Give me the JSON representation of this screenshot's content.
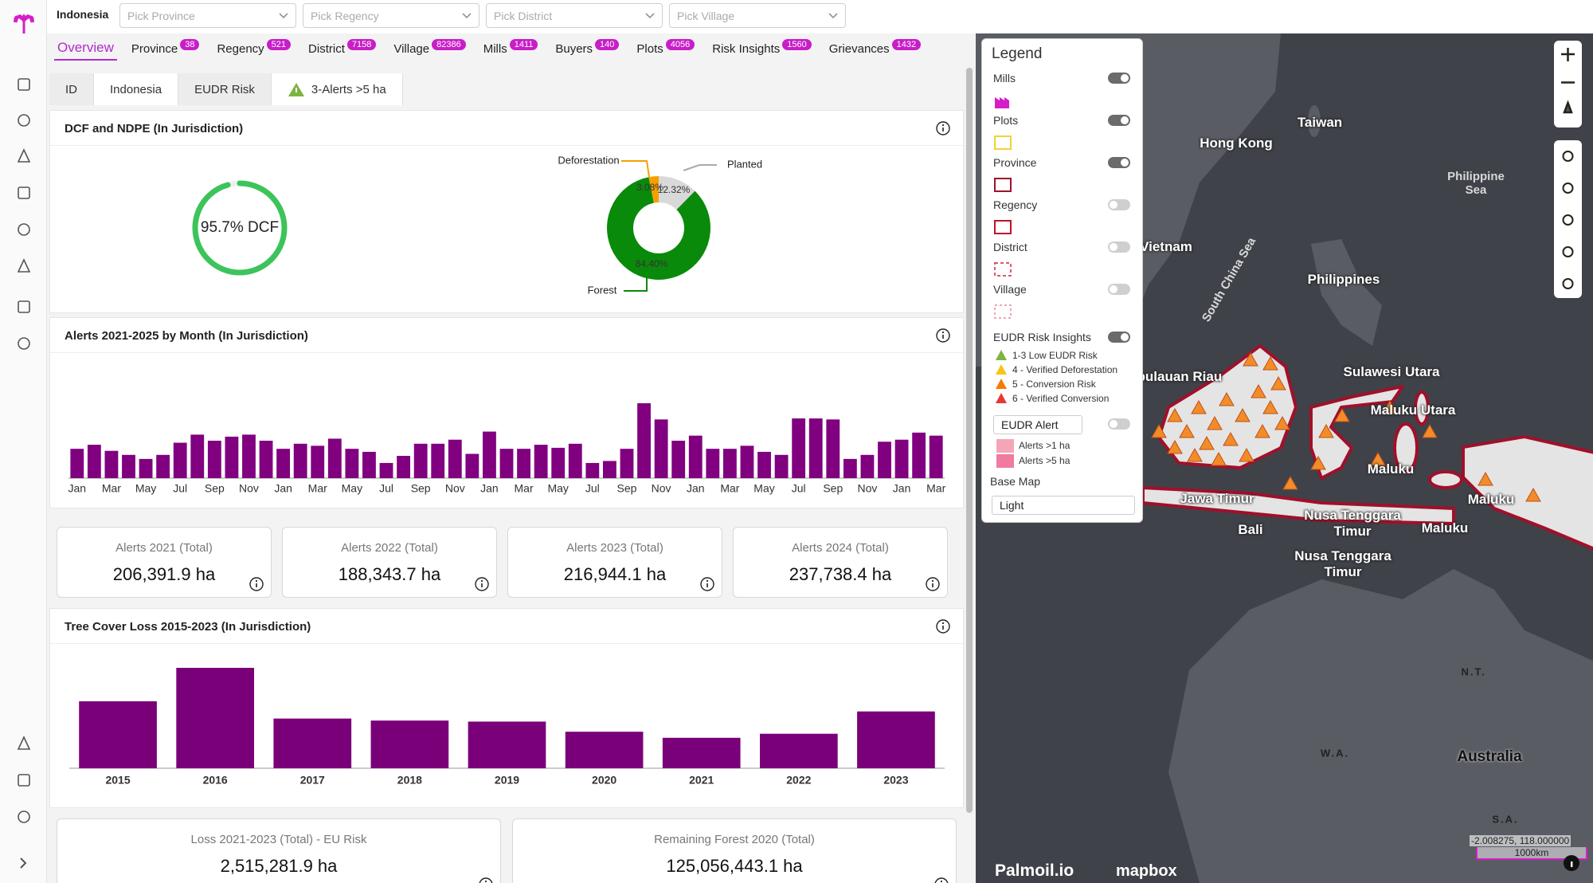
{
  "top_bar": {
    "country": "Indonesia",
    "filters": [
      "Pick Province",
      "Pick Regency",
      "Pick District",
      "Pick Village"
    ]
  },
  "tabs": [
    {
      "label": "Overview",
      "active": true
    },
    {
      "label": "Province",
      "count": 38
    },
    {
      "label": "Regency",
      "count": 521
    },
    {
      "label": "District",
      "count": 7158
    },
    {
      "label": "Village",
      "count": 82386
    },
    {
      "label": "Mills",
      "count": 1411
    },
    {
      "label": "Buyers",
      "count": 140
    },
    {
      "label": "Plots",
      "count": 4056
    },
    {
      "label": "Risk Insights",
      "count": 1560
    },
    {
      "label": "Grievances",
      "count": 1432
    }
  ],
  "sub_tabs": [
    {
      "label": "ID"
    },
    {
      "label": "Indonesia",
      "active": true
    },
    {
      "label": "EUDR Risk"
    },
    {
      "label": "3-Alerts >5 ha",
      "active": true
    }
  ],
  "dcf_panel": {
    "title": "DCF and NDPE (In Jurisdiction)",
    "dcf": {
      "value": 95.7,
      "label": "95.7% DCF",
      "color": "#3cc45a"
    },
    "donut": {
      "type": "donut",
      "categories": [
        "Planted",
        "Forest",
        "Deforestation"
      ],
      "values": [
        12.32,
        84.4,
        3.08
      ],
      "value_labels": [
        "12.32%",
        "84.40%",
        "3.08%"
      ],
      "colors": [
        "#d9d9d9",
        "#0a8a0a",
        "#f5a000"
      ]
    }
  },
  "alerts_chart": {
    "type": "bar",
    "title": "Alerts 2021-2025 by Month (In Jurisdiction)",
    "color": "#800080",
    "categories": [
      "Jan",
      null,
      "Mar",
      null,
      "May",
      null,
      "Jul",
      null,
      "Sep",
      null,
      "Nov",
      null,
      "Jan",
      null,
      "Mar",
      null,
      "May",
      null,
      "Jul",
      null,
      "Sep",
      null,
      "Nov",
      null,
      "Jan",
      null,
      "Mar",
      null,
      "May",
      null,
      "Jul",
      null,
      "Sep",
      null,
      "Nov",
      null,
      "Jan",
      null,
      "Mar",
      null,
      "May",
      null,
      "Jul",
      null,
      "Sep",
      null,
      "Nov",
      null,
      "Jan",
      null,
      "Mar"
    ],
    "values": [
      29,
      33,
      27,
      23,
      19,
      23,
      35,
      43,
      37,
      41,
      43,
      37,
      29,
      34,
      32,
      39,
      29,
      26,
      15,
      22,
      34,
      34,
      38,
      24,
      46,
      29,
      29,
      33,
      30,
      34,
      15,
      17,
      29,
      74,
      58,
      37,
      42,
      29,
      29,
      32,
      26,
      23,
      59,
      59,
      58,
      19,
      23,
      36,
      38,
      45,
      42
    ]
  },
  "stat_cards": [
    {
      "title": "Alerts 2021 (Total)",
      "value": "206,391.9 ha"
    },
    {
      "title": "Alerts 2022 (Total)",
      "value": "188,343.7 ha"
    },
    {
      "title": "Alerts 2023 (Total)",
      "value": "216,944.1 ha"
    },
    {
      "title": "Alerts 2024 (Total)",
      "value": "237,738.4 ha"
    }
  ],
  "tree_cover_chart": {
    "type": "bar",
    "title": "Tree Cover Loss 2015-2023 (In Jurisdiction)",
    "color": "#7a007a",
    "categories": [
      "2015",
      "2016",
      "2017",
      "2018",
      "2019",
      "2020",
      "2021",
      "2022",
      "2023"
    ],
    "values": [
      66,
      99,
      49,
      47,
      46,
      36,
      30,
      34,
      56
    ]
  },
  "bottom_cards": [
    {
      "title": "Loss 2021-2023 (Total) - EU Risk",
      "value": "2,515,281.9 ha"
    },
    {
      "title": "Remaining Forest 2020 (Total)",
      "value": "125,056,443.1 ha"
    }
  ],
  "legend": {
    "title": "Legend",
    "layers": [
      {
        "label": "Mills",
        "on": true
      },
      {
        "label": "Plots",
        "on": true
      },
      {
        "label": "Province",
        "on": true
      },
      {
        "label": "Regency",
        "on": false
      },
      {
        "label": "District",
        "on": false
      },
      {
        "label": "Village",
        "on": false
      }
    ],
    "risk": {
      "label": "EUDR Risk Insights",
      "on": true,
      "levels": [
        {
          "label": "1-3 Low EUDR Risk",
          "color": "#7cb342"
        },
        {
          "label": "4 - Verified Deforestation",
          "color": "#f5c518"
        },
        {
          "label": "5 - Conversion Risk",
          "color": "#f57c00"
        },
        {
          "label": "6 - Verified Conversion",
          "color": "#e53935"
        }
      ]
    },
    "alert": {
      "label": "EUDR Alert",
      "on": false,
      "levels": [
        {
          "label": "Alerts >1 ha",
          "color": "#f4a6b8"
        },
        {
          "label": "Alerts >5 ha",
          "color": "#f07aa0"
        }
      ]
    },
    "base_map": {
      "label": "Base Map",
      "value": "Light"
    }
  },
  "map": {
    "labels": [
      "Taiwan",
      "Hong Kong",
      "Philippine Sea",
      "Vietnam",
      "South China Sea",
      "Philippines",
      "Kepulauan Riau",
      "Sulawesi Utara",
      "Maluku Utara",
      "Maluku",
      "Maluku",
      "Maluku",
      "Jawa Timur",
      "Bali",
      "Nusa Tenggara Timur",
      "Nusa Tenggara Timur",
      "N.T.",
      "W.A.",
      "Australia",
      "S.A."
    ],
    "brand": "Palmoil.io",
    "provider": "mapbox",
    "coordinates": "-2.008275, 118.000000",
    "scale": "1000km"
  }
}
